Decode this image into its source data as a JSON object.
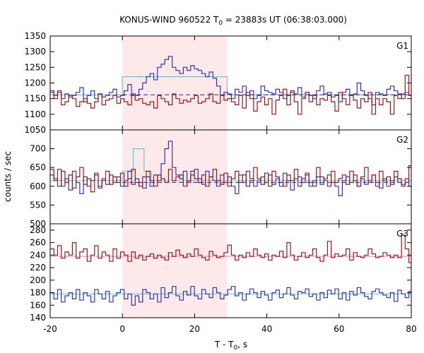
{
  "chart_data": {
    "type": "line",
    "title": "KONUS-WIND 960522 T",
    "title_sub": "0",
    "title_rest": " = 23883s UT (06:38:03.000)",
    "xlabel": "T - T",
    "xlabel_sub": "0",
    "xlabel_rest": ", s",
    "ylabel": "counts / sec",
    "xlim": [
      -20,
      80
    ],
    "x_ticks": [
      "-20",
      "0",
      "20",
      "40",
      "60",
      "80"
    ],
    "highlight_interval": [
      0,
      29
    ],
    "colors": {
      "highlight": "#fde8ea",
      "blue": "#3333bb",
      "red": "#a01515",
      "cyan": "#66cccc",
      "pink": "#e899c4",
      "dashed": "#3333bb"
    },
    "panels": [
      {
        "label": "G1",
        "ylim": [
          1050,
          1350
        ],
        "y_ticks": [
          1050,
          1100,
          1150,
          1200,
          1250,
          1300,
          1350
        ],
        "bin_start": -20,
        "bin_width": 1.024,
        "series": [
          {
            "name": "blue",
            "color": "blue",
            "values": [
              1170,
              1160,
              1175,
              1150,
              1165,
              1155,
              1160,
              1170,
              1185,
              1140,
              1160,
              1175,
              1150,
              1165,
              1155,
              1160,
              1170,
              1180,
              1155,
              1160,
              1175,
              1195,
              1165,
              1160,
              1180,
              1200,
              1220,
              1230,
              1210,
              1250,
              1260,
              1275,
              1285,
              1250,
              1240,
              1230,
              1250,
              1240,
              1255,
              1245,
              1240,
              1230,
              1220,
              1235,
              1215,
              1190,
              1160,
              1170,
              1165,
              1150,
              1180,
              1170,
              1190,
              1160,
              1175,
              1150,
              1160,
              1190,
              1175,
              1170,
              1165,
              1180,
              1170,
              1150,
              1160,
              1175,
              1165,
              1185,
              1155,
              1170,
              1160,
              1150,
              1175,
              1190,
              1165,
              1170,
              1155,
              1160,
              1140,
              1170,
              1180,
              1160,
              1165,
              1200,
              1175,
              1160,
              1150,
              1130,
              1170,
              1165,
              1160,
              1180,
              1190,
              1175,
              1165,
              1150,
              1170,
              1160
            ]
          },
          {
            "name": "red",
            "color": "red",
            "values": [
              1175,
              1150,
              1170,
              1130,
              1140,
              1160,
              1150,
              1125,
              1140,
              1150,
              1135,
              1120,
              1140,
              1165,
              1130,
              1145,
              1150,
              1160,
              1135,
              1150,
              1140,
              1130,
              1160,
              1145,
              1150,
              1135,
              1130,
              1140,
              1120,
              1160,
              1150,
              1140,
              1130,
              1165,
              1150,
              1135,
              1145,
              1140,
              1150,
              1160,
              1135,
              1140,
              1150,
              1165,
              1140,
              1135,
              1160,
              1145,
              1150,
              1140,
              1130,
              1160,
              1120,
              1170,
              1150,
              1110,
              1140,
              1155,
              1130,
              1150,
              1100,
              1145,
              1160,
              1180,
              1130,
              1170,
              1140,
              1100,
              1150,
              1170,
              1140,
              1160,
              1130,
              1150,
              1145,
              1160,
              1140,
              1110,
              1170,
              1150,
              1130,
              1160,
              1145,
              1120,
              1150,
              1140,
              1170,
              1100,
              1150,
              1130,
              1150,
              1140,
              1100,
              1160,
              1150,
              1165,
              1225,
              1160
            ]
          }
        ],
        "steps": [
          {
            "color": "cyan",
            "points": [
              [
                -20,
                1162
              ],
              [
                0,
                1162
              ],
              [
                0,
                1220
              ],
              [
                29,
                1220
              ],
              [
                29,
                1162
              ],
              [
                80,
                1162
              ]
            ]
          }
        ],
        "dashed_level": {
          "value": 1162,
          "from": 0,
          "to": 80
        }
      },
      {
        "label": "G2",
        "ylim": [
          500,
          750
        ],
        "y_ticks": [
          500,
          550,
          600,
          650,
          700
        ],
        "bin_start": -20,
        "bin_width": 1.024,
        "series": [
          {
            "name": "blue",
            "color": "blue",
            "values": [
              630,
              615,
              645,
              600,
              620,
              590,
              640,
              610,
              580,
              625,
              600,
              615,
              635,
              595,
              620,
              605,
              630,
              610,
              625,
              600,
              615,
              640,
              605,
              620,
              610,
              595,
              625,
              600,
              630,
              615,
              660,
              700,
              720,
              650,
              630,
              620,
              640,
              610,
              630,
              645,
              620,
              605,
              640,
              625,
              615,
              600,
              630,
              610,
              625,
              600,
              580,
              630,
              610,
              640,
              620,
              600,
              615,
              625,
              610,
              630,
              605,
              620,
              600,
              635,
              615,
              590,
              620,
              625,
              610,
              630,
              600,
              615,
              625,
              605,
              620,
              630,
              610,
              600,
              575,
              615,
              625,
              610,
              630,
              600,
              620,
              605,
              615,
              630,
              610,
              595,
              620,
              600,
              615,
              625,
              610,
              605,
              620,
              600
            ]
          },
          {
            "name": "red",
            "color": "red",
            "values": [
              645,
              620,
              600,
              640,
              610,
              630,
              595,
              625,
              650,
              605,
              620,
              585,
              630,
              600,
              615,
              640,
              605,
              625,
              610,
              635,
              600,
              620,
              645,
              610,
              600,
              625,
              640,
              615,
              600,
              630,
              620,
              610,
              645,
              615,
              625,
              630,
              600,
              615,
              640,
              620,
              610,
              630,
              600,
              625,
              645,
              615,
              605,
              635,
              600,
              620,
              640,
              610,
              630,
              600,
              615,
              650,
              620,
              605,
              635,
              600,
              640,
              625,
              610,
              600,
              630,
              615,
              645,
              600,
              620,
              635,
              610,
              600,
              650,
              625,
              615,
              600,
              640,
              610,
              620,
              630,
              605,
              640,
              615,
              600,
              625,
              650,
              610,
              630,
              600,
              640,
              615,
              625,
              605,
              640,
              620,
              600,
              610,
              655
            ]
          }
        ],
        "steps": [
          {
            "color": "cyan",
            "points": [
              [
                -20,
                615
              ],
              [
                0,
                615
              ],
              [
                0,
                640
              ],
              [
                3,
                640
              ],
              [
                3,
                700
              ],
              [
                6,
                700
              ],
              [
                6,
                640
              ],
              [
                8,
                640
              ],
              [
                8,
                615
              ],
              [
                80,
                615
              ]
            ]
          }
        ],
        "dashed_level": {
          "value": 610,
          "from": 0,
          "to": 80
        }
      },
      {
        "label": "G3",
        "ylim": [
          140,
          290
        ],
        "y_ticks": [
          140,
          160,
          180,
          200,
          220,
          240,
          260,
          280
        ],
        "bin_start": -20,
        "bin_width": 1.024,
        "series": [
          {
            "name": "red",
            "color": "red",
            "values": [
              250,
              240,
              255,
              235,
              245,
              240,
              260,
              235,
              245,
              250,
              230,
              240,
              255,
              235,
              245,
              240,
              230,
              250,
              235,
              245,
              240,
              230,
              245,
              235,
              240,
              232,
              238,
              242,
              235,
              240,
              236,
              232,
              244,
              238,
              248,
              240,
              236,
              242,
              238,
              250,
              240,
              236,
              232,
              246,
              240,
              236,
              238,
              244,
              256,
              240,
              232,
              240,
              236,
              244,
              238,
              250,
              240,
              236,
              242,
              232,
              240,
              238,
              246,
              236,
              260,
              240,
              232,
              238,
              244,
              236,
              240,
              250,
              236,
              230,
              240,
              262,
              236,
              242,
              238,
              240,
              250,
              232,
              244,
              238,
              236,
              240,
              250,
              242,
              236,
              238,
              244,
              240,
              236,
              240,
              236,
              272,
              250,
              228
            ]
          },
          {
            "name": "blue",
            "color": "blue",
            "values": [
              180,
              170,
              185,
              165,
              175,
              180,
              170,
              185,
              168,
              180,
              175,
              165,
              185,
              178,
              170,
              182,
              165,
              175,
              180,
              185,
              170,
              178,
              160,
              175,
              165,
              185,
              180,
              170,
              178,
              165,
              188,
              172,
              180,
              190,
              175,
              168,
              182,
              176,
              190,
              175,
              170,
              185,
              178,
              172,
              188,
              180,
              170,
              176,
              185,
              190,
              175,
              180,
              168,
              178,
              186,
              180,
              172,
              182,
              176,
              168,
              180,
              184,
              172,
              178,
              188,
              176,
              170,
              182,
              180,
              186,
              174,
              178,
              168,
              180,
              172,
              184,
              178,
              186,
              170,
              180,
              168,
              182,
              176,
              188,
              180,
              174,
              170,
              182,
              186,
              180,
              176,
              172,
              180,
              166,
              184,
              178,
              172,
              182
            ]
          }
        ],
        "steps": [
          {
            "color": "pink",
            "points": [
              [
                -20,
                238
              ],
              [
                80,
                238
              ]
            ]
          },
          {
            "color": "cyan",
            "points": [
              [
                -20,
                178
              ],
              [
                80,
                178
              ]
            ]
          }
        ],
        "dashed_level": null
      }
    ]
  }
}
